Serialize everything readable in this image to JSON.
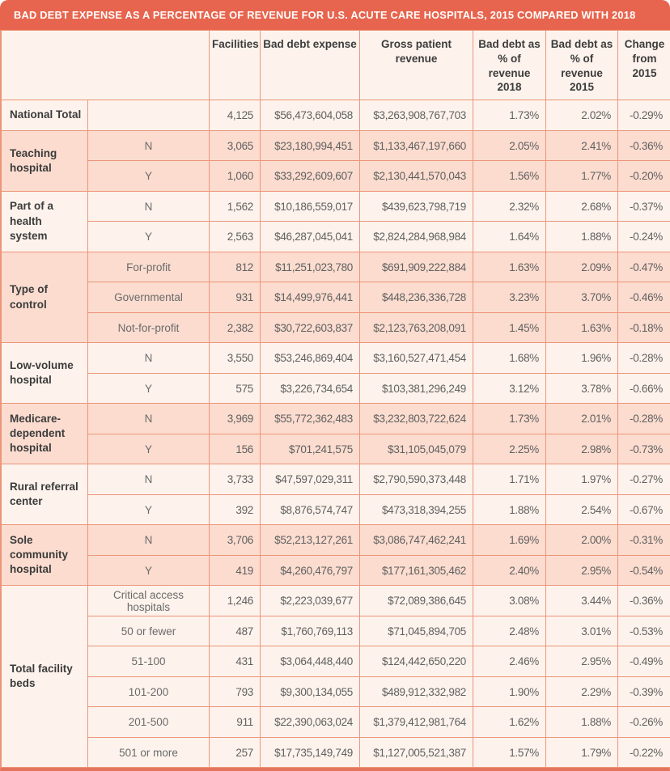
{
  "title": "BAD DEBT EXPENSE AS A PERCENTAGE OF REVENUE FOR U.S. ACUTE CARE HOSPITALS, 2015 COMPARED WITH 2018",
  "header": {
    "labels": [
      "Facilities",
      "Bad debt expense",
      "Gross patient revenue",
      "Bad debt as % of revenue 2018",
      "Bad debt as % of revenue 2015",
      "Change from 2015"
    ]
  },
  "colors": {
    "accent": "#E7654E",
    "row_light": "#FDF3EC",
    "row_dark": "#FBDCCF",
    "border": "#EC9579",
    "border_heavy": "#E4755C",
    "text_dark": "#3C3C3C",
    "text_value": "#606060"
  },
  "chart_data": {
    "type": "table",
    "title": "BAD DEBT EXPENSE AS A PERCENTAGE OF REVENUE FOR U.S. ACUTE CARE HOSPITALS, 2015 COMPARED WITH 2018",
    "columns": [
      "Facilities",
      "Bad debt expense",
      "Gross patient revenue",
      "Bad debt as % of revenue 2018",
      "Bad debt as % of revenue 2015",
      "Change from 2015"
    ],
    "groups": [
      {
        "label": "National Total",
        "shade": "light",
        "rows": [
          [
            "",
            "4,125",
            "$56,473,604,058",
            "$3,263,908,767,703",
            "1.73%",
            "2.02%",
            "-0.29%"
          ]
        ]
      },
      {
        "label": "Teaching hospital",
        "shade": "dark",
        "rows": [
          [
            "N",
            "3,065",
            "$23,180,994,451",
            "$1,133,467,197,660",
            "2.05%",
            "2.41%",
            "-0.36%"
          ],
          [
            "Y",
            "1,060",
            "$33,292,609,607",
            "$2,130,441,570,043",
            "1.56%",
            "1.77%",
            "-0.20%"
          ]
        ]
      },
      {
        "label": "Part of a health system",
        "shade": "light",
        "rows": [
          [
            "N",
            "1,562",
            "$10,186,559,017",
            "$439,623,798,719",
            "2.32%",
            "2.68%",
            "-0.37%"
          ],
          [
            "Y",
            "2,563",
            "$46,287,045,041",
            "$2,824,284,968,984",
            "1.64%",
            "1.88%",
            "-0.24%"
          ]
        ]
      },
      {
        "label": "Type of control",
        "shade": "dark",
        "rows": [
          [
            "For-profit",
            "812",
            "$11,251,023,780",
            "$691,909,222,884",
            "1.63%",
            "2.09%",
            "-0.47%"
          ],
          [
            "Governmental",
            "931",
            "$14,499,976,441",
            "$448,236,336,728",
            "3.23%",
            "3.70%",
            "-0.46%"
          ],
          [
            "Not-for-profit",
            "2,382",
            "$30,722,603,837",
            "$2,123,763,208,091",
            "1.45%",
            "1.63%",
            "-0.18%"
          ]
        ]
      },
      {
        "label": "Low-volume hospital",
        "shade": "light",
        "rows": [
          [
            "N",
            "3,550",
            "$53,246,869,404",
            "$3,160,527,471,454",
            "1.68%",
            "1.96%",
            "-0.28%"
          ],
          [
            "Y",
            "575",
            "$3,226,734,654",
            "$103,381,296,249",
            "3.12%",
            "3.78%",
            "-0.66%"
          ]
        ]
      },
      {
        "label": "Medicare-dependent hospital",
        "shade": "dark",
        "rows": [
          [
            "N",
            "3,969",
            "$55,772,362,483",
            "$3,232,803,722,624",
            "1.73%",
            "2.01%",
            "-0.28%"
          ],
          [
            "Y",
            "156",
            "$701,241,575",
            "$31,105,045,079",
            "2.25%",
            "2.98%",
            "-0.73%"
          ]
        ]
      },
      {
        "label": "Rural referral center",
        "shade": "light",
        "rows": [
          [
            "N",
            "3,733",
            "$47,597,029,311",
            "$2,790,590,373,448",
            "1.71%",
            "1.97%",
            "-0.27%"
          ],
          [
            "Y",
            "392",
            "$8,876,574,747",
            "$473,318,394,255",
            "1.88%",
            "2.54%",
            "-0.67%"
          ]
        ]
      },
      {
        "label": "Sole community hospital",
        "shade": "dark",
        "rows": [
          [
            "N",
            "3,706",
            "$52,213,127,261",
            "$3,086,747,462,241",
            "1.69%",
            "2.00%",
            "-0.31%"
          ],
          [
            "Y",
            "419",
            "$4,260,476,797",
            "$177,161,305,462",
            "2.40%",
            "2.95%",
            "-0.54%"
          ]
        ]
      },
      {
        "label": "Total facility beds",
        "shade": "light",
        "rows": [
          [
            "Critical access hospitals",
            "1,246",
            "$2,223,039,677",
            "$72,089,386,645",
            "3.08%",
            "3.44%",
            "-0.36%"
          ],
          [
            "50 or fewer",
            "487",
            "$1,760,769,113",
            "$71,045,894,705",
            "2.48%",
            "3.01%",
            "-0.53%"
          ],
          [
            "51-100",
            "431",
            "$3,064,448,440",
            "$124,442,650,220",
            "2.46%",
            "2.95%",
            "-0.49%"
          ],
          [
            "101-200",
            "793",
            "$9,300,134,055",
            "$489,912,332,982",
            "1.90%",
            "2.29%",
            "-0.39%"
          ],
          [
            "201-500",
            "911",
            "$22,390,063,024",
            "$1,379,412,981,764",
            "1.62%",
            "1.88%",
            "-0.26%"
          ],
          [
            "501 or more",
            "257",
            "$17,735,149,749",
            "$1,127,005,521,387",
            "1.57%",
            "1.79%",
            "-0.22%"
          ]
        ]
      }
    ]
  }
}
